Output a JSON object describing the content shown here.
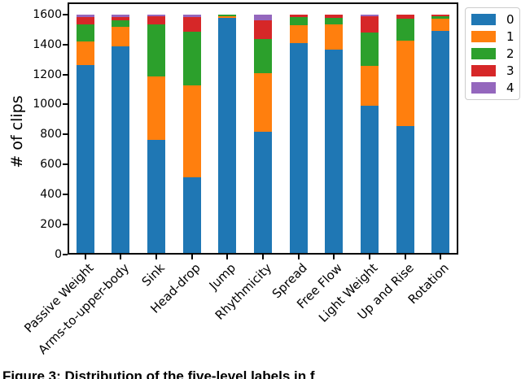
{
  "figure": {
    "caption_partial": "Figure 3: Distribution of the five-level labels in f"
  },
  "chart_data": {
    "type": "bar",
    "stacked": true,
    "title": "",
    "xlabel": "",
    "ylabel": "# of clips",
    "ylim": [
      0,
      1680
    ],
    "yticks": [
      0,
      200,
      400,
      600,
      800,
      1000,
      1200,
      1400,
      1600
    ],
    "grid": false,
    "legend_position": "upper right outside",
    "categories": [
      "Passive Weight",
      "Arms-to-upper-body",
      "Sink",
      "Head-drop",
      "Jump",
      "Rhythmicity",
      "Spread",
      "Free Flow",
      "Light Weight",
      "Up and Rise",
      "Rotation"
    ],
    "series": [
      {
        "name": "0",
        "color": "#1f77b4",
        "values": [
          1265,
          1390,
          765,
          515,
          1578,
          820,
          1410,
          1365,
          990,
          858,
          1490
        ]
      },
      {
        "name": "1",
        "color": "#ff7f0e",
        "values": [
          155,
          127,
          420,
          610,
          8,
          390,
          118,
          168,
          265,
          570,
          83
        ]
      },
      {
        "name": "2",
        "color": "#2ca02c",
        "values": [
          115,
          45,
          350,
          360,
          14,
          225,
          54,
          44,
          223,
          146,
          15
        ]
      },
      {
        "name": "3",
        "color": "#d62728",
        "values": [
          45,
          18,
          53,
          95,
          0,
          128,
          18,
          23,
          110,
          26,
          12
        ]
      },
      {
        "name": "4",
        "color": "#9467bd",
        "values": [
          20,
          20,
          12,
          20,
          0,
          37,
          0,
          0,
          12,
          0,
          0
        ]
      }
    ],
    "bar_total": 1600
  }
}
